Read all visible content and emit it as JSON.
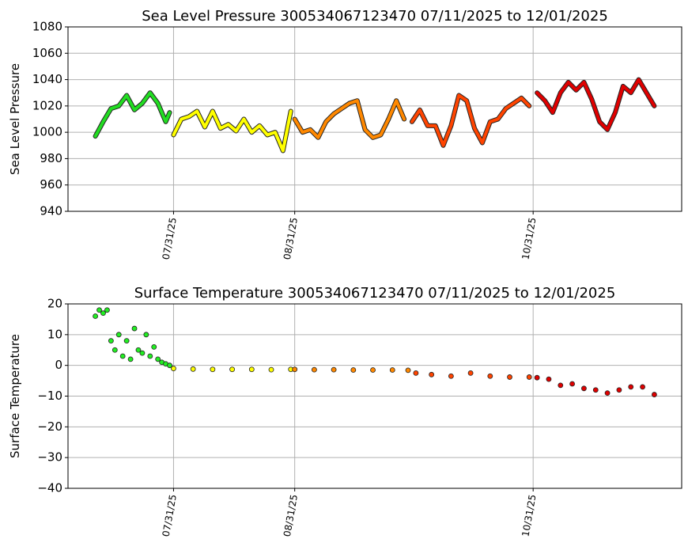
{
  "chart_data": [
    {
      "type": "line",
      "title": "Sea Level Pressure 300534067123470  07/11/2025 to 12/01/2025",
      "y_label": "Sea Level Pressure",
      "xlim": [
        "2025-07-04",
        "2025-12-08"
      ],
      "xticks": [
        {
          "value": "2025-07-31",
          "label": "07/31/25"
        },
        {
          "value": "2025-08-31",
          "label": "08/31/25"
        },
        {
          "value": "2025-10-31",
          "label": "10/31/25"
        }
      ],
      "ylim": [
        940,
        1080
      ],
      "yticks": [
        940,
        960,
        980,
        1000,
        1020,
        1040,
        1060,
        1080
      ],
      "grid": true,
      "series": [
        {
          "color": "#22dd22",
          "x": [
            "2025-07-11",
            "2025-07-13",
            "2025-07-15",
            "2025-07-17",
            "2025-07-19",
            "2025-07-21",
            "2025-07-23",
            "2025-07-25",
            "2025-07-27",
            "2025-07-29",
            "2025-07-30"
          ],
          "values": [
            997,
            1008,
            1018,
            1020,
            1028,
            1017,
            1022,
            1030,
            1022,
            1008,
            1015
          ]
        },
        {
          "color": "#ffff00",
          "x": [
            "2025-07-31",
            "2025-08-02",
            "2025-08-04",
            "2025-08-06",
            "2025-08-08",
            "2025-08-10",
            "2025-08-12",
            "2025-08-14",
            "2025-08-16",
            "2025-08-18",
            "2025-08-20",
            "2025-08-22",
            "2025-08-24",
            "2025-08-26",
            "2025-08-28",
            "2025-08-30"
          ],
          "values": [
            998,
            1010,
            1012,
            1016,
            1004,
            1016,
            1003,
            1006,
            1001,
            1010,
            1000,
            1005,
            998,
            1000,
            986,
            1016
          ]
        },
        {
          "color": "#ff8800",
          "x": [
            "2025-08-31",
            "2025-09-02",
            "2025-09-04",
            "2025-09-06",
            "2025-09-08",
            "2025-09-10",
            "2025-09-12",
            "2025-09-14",
            "2025-09-16",
            "2025-09-18",
            "2025-09-20",
            "2025-09-22",
            "2025-09-24",
            "2025-09-26",
            "2025-09-28"
          ],
          "values": [
            1010,
            1000,
            1002,
            996,
            1008,
            1014,
            1018,
            1022,
            1024,
            1002,
            996,
            998,
            1010,
            1024,
            1010
          ]
        },
        {
          "color": "#ff4400",
          "x": [
            "2025-09-30",
            "2025-10-02",
            "2025-10-04",
            "2025-10-06",
            "2025-10-08",
            "2025-10-10",
            "2025-10-12",
            "2025-10-14",
            "2025-10-16",
            "2025-10-18",
            "2025-10-20",
            "2025-10-22",
            "2025-10-24",
            "2025-10-26",
            "2025-10-28",
            "2025-10-30"
          ],
          "values": [
            1008,
            1017,
            1005,
            1005,
            990,
            1005,
            1028,
            1024,
            1003,
            992,
            1008,
            1010,
            1018,
            1022,
            1026,
            1020
          ]
        },
        {
          "color": "#e00000",
          "x": [
            "2025-11-01",
            "2025-11-03",
            "2025-11-05",
            "2025-11-07",
            "2025-11-09",
            "2025-11-11",
            "2025-11-13",
            "2025-11-15",
            "2025-11-17",
            "2025-11-19",
            "2025-11-21",
            "2025-11-23",
            "2025-11-25",
            "2025-11-27",
            "2025-11-29",
            "2025-12-01"
          ],
          "values": [
            1030,
            1024,
            1015,
            1030,
            1038,
            1032,
            1038,
            1025,
            1008,
            1002,
            1015,
            1035,
            1030,
            1040,
            1030,
            1020
          ]
        }
      ]
    },
    {
      "type": "scatter",
      "title": "Surface Temperature 300534067123470  07/11/2025 to 12/01/2025",
      "y_label": "Surface Temperature",
      "xlim": [
        "2025-07-04",
        "2025-12-08"
      ],
      "xticks": [
        {
          "value": "2025-07-31",
          "label": "07/31/25"
        },
        {
          "value": "2025-08-31",
          "label": "08/31/25"
        },
        {
          "value": "2025-10-31",
          "label": "10/31/25"
        }
      ],
      "ylim": [
        -40,
        20
      ],
      "yticks": [
        {
          "value": -40,
          "label": "−40"
        },
        {
          "value": -30,
          "label": "−30"
        },
        {
          "value": -20,
          "label": "−20"
        },
        {
          "value": -10,
          "label": "−10"
        },
        0,
        10,
        20
      ],
      "grid": true,
      "series": [
        {
          "color": "#22ee22",
          "x": [
            "2025-07-11",
            "2025-07-12",
            "2025-07-13",
            "2025-07-14",
            "2025-07-15",
            "2025-07-16",
            "2025-07-17",
            "2025-07-18",
            "2025-07-19",
            "2025-07-20",
            "2025-07-21",
            "2025-07-22",
            "2025-07-23",
            "2025-07-24",
            "2025-07-25",
            "2025-07-26",
            "2025-07-27",
            "2025-07-28",
            "2025-07-29",
            "2025-07-30"
          ],
          "values": [
            16,
            18,
            17,
            18,
            8,
            5,
            10,
            3,
            8,
            2,
            12,
            5,
            4,
            10,
            3,
            6,
            2,
            1,
            0.5,
            0
          ]
        },
        {
          "color": "#ffff00",
          "x": [
            "2025-07-31",
            "2025-08-05",
            "2025-08-10",
            "2025-08-15",
            "2025-08-20",
            "2025-08-25",
            "2025-08-30"
          ],
          "values": [
            -1,
            -1.2,
            -1.3,
            -1.3,
            -1.3,
            -1.4,
            -1.3
          ]
        },
        {
          "color": "#ff8800",
          "x": [
            "2025-08-31",
            "2025-09-05",
            "2025-09-10",
            "2025-09-15",
            "2025-09-20",
            "2025-09-25",
            "2025-09-29"
          ],
          "values": [
            -1.3,
            -1.4,
            -1.4,
            -1.5,
            -1.5,
            -1.5,
            -1.6
          ]
        },
        {
          "color": "#ff4400",
          "x": [
            "2025-10-01",
            "2025-10-05",
            "2025-10-10",
            "2025-10-15",
            "2025-10-20",
            "2025-10-25",
            "2025-10-30"
          ],
          "values": [
            -2.5,
            -3,
            -3.5,
            -2.5,
            -3.5,
            -3.8,
            -3.8
          ]
        },
        {
          "color": "#e00000",
          "x": [
            "2025-11-01",
            "2025-11-04",
            "2025-11-07",
            "2025-11-10",
            "2025-11-13",
            "2025-11-16",
            "2025-11-19",
            "2025-11-22",
            "2025-11-25",
            "2025-11-28",
            "2025-12-01"
          ],
          "values": [
            -4,
            -4.5,
            -6.5,
            -6,
            -7.5,
            -8,
            -9,
            -8,
            -7,
            -7,
            -9.5
          ]
        }
      ]
    }
  ]
}
